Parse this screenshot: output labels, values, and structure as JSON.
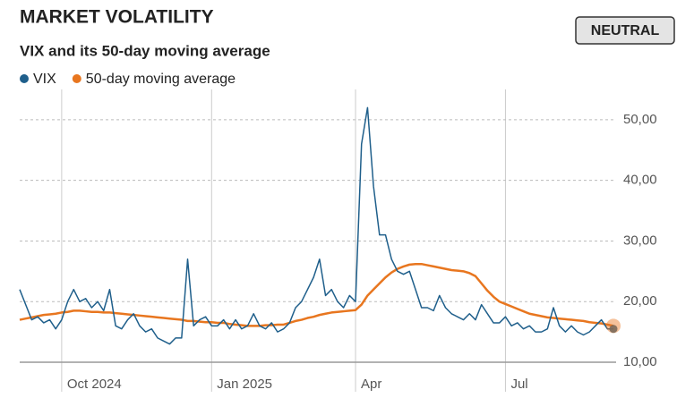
{
  "chart_data": {
    "type": "line",
    "title": "MARKET VOLATILITY",
    "subtitle": "VIX and its 50-day moving average",
    "badge": "NEUTRAL",
    "categories": [
      null,
      null,
      null,
      null,
      null,
      null,
      null,
      "Oct 2024",
      null,
      null,
      null,
      null,
      null,
      null,
      null,
      null,
      null,
      null,
      null,
      null,
      null,
      null,
      null,
      null,
      null,
      null,
      null,
      null,
      null,
      null,
      null,
      null,
      "Jan 2025",
      null,
      null,
      null,
      null,
      null,
      null,
      null,
      null,
      null,
      null,
      null,
      null,
      null,
      null,
      null,
      null,
      null,
      null,
      null,
      null,
      null,
      null,
      null,
      "Apr",
      null,
      null,
      null,
      null,
      null,
      null,
      null,
      null,
      null,
      null,
      null,
      null,
      null,
      null,
      null,
      null,
      null,
      null,
      null,
      null,
      null,
      null,
      null,
      null,
      "Jul",
      null,
      null,
      null,
      null,
      null,
      null,
      null,
      null,
      null,
      null,
      null,
      null,
      null,
      null,
      null,
      null,
      null,
      null
    ],
    "series": [
      {
        "name": "VIX",
        "color": "#1f5f8b",
        "values": [
          22,
          19.5,
          17,
          17.5,
          16.5,
          17,
          15.5,
          17,
          20,
          22,
          20,
          20.5,
          19,
          20,
          18.5,
          22,
          16,
          15.5,
          17,
          18,
          16,
          15,
          15.5,
          14,
          13.5,
          13,
          14,
          14,
          27,
          16,
          17,
          17.5,
          16,
          16,
          17,
          15.5,
          17,
          15.5,
          16,
          18,
          16,
          15.5,
          16.5,
          15,
          15.5,
          16.5,
          19,
          20,
          22,
          24,
          27,
          21,
          22,
          20,
          19,
          21,
          20,
          46,
          52,
          39,
          31,
          31,
          27,
          25,
          24.5,
          25,
          22,
          19,
          19,
          18.5,
          21,
          19,
          18,
          17.5,
          17,
          18,
          17,
          19.5,
          18,
          16.5,
          16.5,
          17.5,
          16,
          16.5,
          15.5,
          16,
          15,
          15,
          15.5,
          19,
          16,
          15,
          16,
          15,
          14.5,
          15,
          16,
          17,
          15.5,
          15.5
        ]
      },
      {
        "name": "50-day moving average",
        "color": "#e8761f",
        "values": [
          17.0,
          17.2,
          17.4,
          17.6,
          17.8,
          17.9,
          18.0,
          18.2,
          18.3,
          18.5,
          18.5,
          18.4,
          18.3,
          18.3,
          18.2,
          18.2,
          18.1,
          18.0,
          17.9,
          17.8,
          17.7,
          17.6,
          17.5,
          17.4,
          17.3,
          17.2,
          17.1,
          17.0,
          16.8,
          16.8,
          16.7,
          16.6,
          16.6,
          16.5,
          16.5,
          16.3,
          16.2,
          16.1,
          16.0,
          16.0,
          16.0,
          16.1,
          16.1,
          16.2,
          16.2,
          16.5,
          16.8,
          17.0,
          17.3,
          17.5,
          17.8,
          18.0,
          18.2,
          18.3,
          18.4,
          18.5,
          18.6,
          19.5,
          21.0,
          22.0,
          23.0,
          24.0,
          24.8,
          25.4,
          25.8,
          26.1,
          26.2,
          26.2,
          26.0,
          25.8,
          25.6,
          25.4,
          25.2,
          25.1,
          25.0,
          24.7,
          24.2,
          23.0,
          21.8,
          20.8,
          20.0,
          19.6,
          19.2,
          18.8,
          18.4,
          18.0,
          17.8,
          17.6,
          17.4,
          17.3,
          17.2,
          17.1,
          17.0,
          16.9,
          16.8,
          16.6,
          16.5,
          16.4,
          16.2,
          16.0
        ]
      }
    ],
    "ylim": [
      10,
      55
    ],
    "yticks": [
      {
        "value": 10,
        "label": "10,00"
      },
      {
        "value": 20,
        "label": "20,00"
      },
      {
        "value": 30,
        "label": "30,00"
      },
      {
        "value": 40,
        "label": "40,00"
      },
      {
        "value": 50,
        "label": "50,00"
      }
    ],
    "grid": true,
    "legend": "top-left"
  }
}
